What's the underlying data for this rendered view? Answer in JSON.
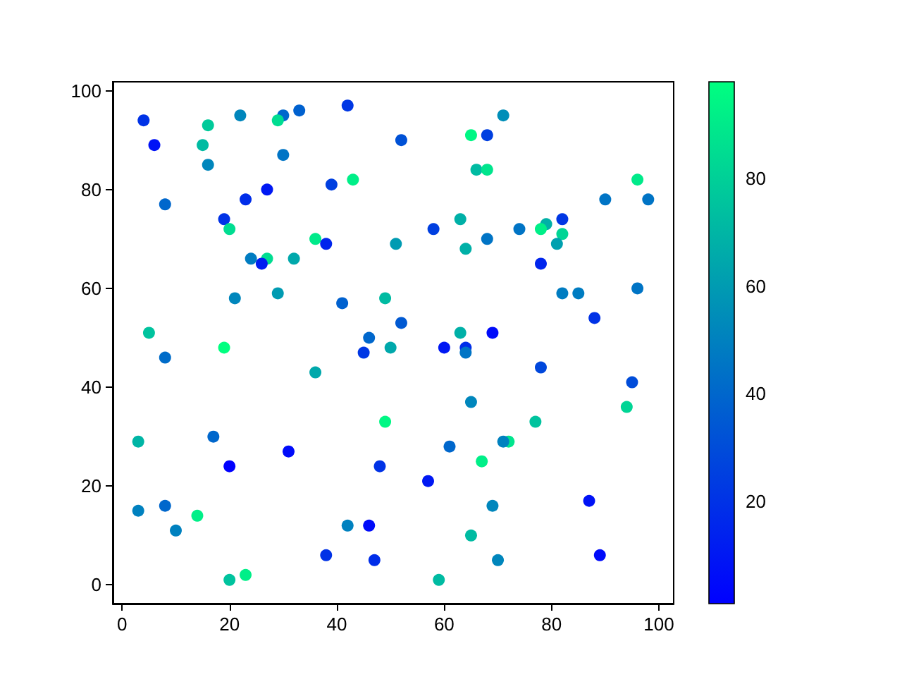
{
  "chart_data": {
    "type": "scatter",
    "x": [
      4,
      6,
      8,
      16,
      15,
      16,
      22,
      30,
      29,
      33,
      42,
      30,
      39,
      43,
      27,
      23,
      19,
      20,
      24,
      27,
      26,
      32,
      36,
      38,
      29,
      21,
      41,
      5,
      8,
      19,
      36,
      3,
      17,
      31,
      20,
      3,
      8,
      10,
      14,
      20,
      23,
      38,
      42,
      46,
      47,
      48,
      45,
      46,
      49,
      50,
      52,
      52,
      51,
      49,
      57,
      58,
      60,
      64,
      64,
      63,
      63,
      64,
      65,
      68,
      66,
      68,
      71,
      68,
      69,
      65,
      61,
      59,
      65,
      70,
      69,
      67,
      72,
      71,
      77,
      74,
      79,
      78,
      82,
      82,
      81,
      78,
      82,
      85,
      90,
      98,
      96,
      96,
      88,
      78,
      95,
      94,
      87,
      89
    ],
    "values": [
      94,
      89,
      77,
      93,
      89,
      85,
      95,
      95,
      94,
      96,
      97,
      87,
      81,
      82,
      80,
      78,
      74,
      72,
      66,
      66,
      65,
      66,
      70,
      69,
      59,
      58,
      57,
      51,
      46,
      48,
      43,
      29,
      30,
      27,
      24,
      15,
      16,
      11,
      14,
      1,
      2,
      6,
      12,
      12,
      5,
      24,
      47,
      50,
      58,
      48,
      53,
      90,
      69,
      33,
      21,
      72,
      48,
      48,
      47,
      51,
      74,
      68,
      91,
      91,
      84,
      84,
      95,
      70,
      51,
      37,
      28,
      1,
      10,
      5,
      16,
      25,
      29,
      29,
      33,
      72,
      73,
      72,
      74,
      71,
      69,
      65,
      59,
      59,
      78,
      78,
      82,
      60,
      54,
      44,
      41,
      36,
      17,
      6
    ],
    "cvalues": [
      20,
      8,
      40,
      78,
      72,
      52,
      52,
      40,
      85,
      38,
      22,
      45,
      25,
      92,
      10,
      18,
      20,
      85,
      48,
      85,
      12,
      65,
      90,
      15,
      60,
      52,
      38,
      75,
      42,
      98,
      65,
      70,
      40,
      5,
      1,
      50,
      40,
      50,
      92,
      75,
      92,
      20,
      50,
      5,
      18,
      20,
      22,
      40,
      72,
      65,
      35,
      32,
      60,
      95,
      10,
      25,
      10,
      18,
      45,
      68,
      68,
      68,
      95,
      25,
      72,
      88,
      55,
      45,
      5,
      52,
      40,
      72,
      72,
      52,
      52,
      92,
      88,
      50,
      75,
      45,
      68,
      92,
      22,
      82,
      62,
      15,
      48,
      48,
      45,
      45,
      90,
      45,
      20,
      28,
      30,
      82,
      8,
      5
    ],
    "xlim": [
      -1.75,
      102.75
    ],
    "ylim": [
      -3.8,
      101.8
    ],
    "xticks": [
      0,
      20,
      40,
      60,
      80,
      100
    ],
    "yticks": [
      0,
      20,
      40,
      60,
      80,
      100
    ],
    "clim": [
      1,
      98
    ],
    "cticks": [
      20,
      40,
      60,
      80
    ],
    "marker": "circle"
  }
}
